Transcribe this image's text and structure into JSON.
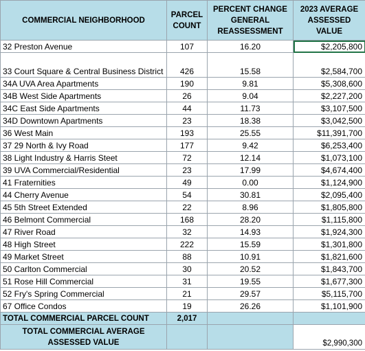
{
  "headers": {
    "neighborhood": "COMMERCIAL NEIGHBORHOOD",
    "parcel_count": "PARCEL COUNT",
    "percent_change": "PERCENT CHANGE GENERAL REASSESSMENT",
    "avg_value": "2023 AVERAGE ASSESSED VALUE"
  },
  "rows": [
    {
      "name": "32 Preston Avenue",
      "count": "107",
      "pct": "16.20",
      "value": "$2,205,800"
    },
    {
      "name": "33 Court Square & Central Business District",
      "count": "426",
      "pct": "15.58",
      "value": "$2,584,700"
    },
    {
      "name": "34A UVA Area Apartments",
      "count": "190",
      "pct": "9.81",
      "value": "$5,308,600"
    },
    {
      "name": "34B West Side Apartments",
      "count": "26",
      "pct": "9.04",
      "value": "$2,227,200"
    },
    {
      "name": "34C East Side Apartments",
      "count": "44",
      "pct": "11.73",
      "value": "$3,107,500"
    },
    {
      "name": "34D Downtown Apartments",
      "count": "23",
      "pct": "18.38",
      "value": "$3,042,500"
    },
    {
      "name": "36 West Main",
      "count": "193",
      "pct": "25.55",
      "value": "$11,391,700"
    },
    {
      "name": "37 29 North & Ivy Road",
      "count": "177",
      "pct": "9.42",
      "value": "$6,253,400"
    },
    {
      "name": "38 Light Industry & Harris Steet",
      "count": "72",
      "pct": "12.14",
      "value": "$1,073,100"
    },
    {
      "name": "39 UVA Commercial/Residential",
      "count": "23",
      "pct": "17.99",
      "value": "$4,674,400"
    },
    {
      "name": "41 Fraternities",
      "count": "49",
      "pct": "0.00",
      "value": "$1,124,900"
    },
    {
      "name": "44 Cherry Avenue",
      "count": "54",
      "pct": "30.81",
      "value": "$2,095,400"
    },
    {
      "name": "45 5th Street Extended",
      "count": "22",
      "pct": "8.96",
      "value": "$1,805,800"
    },
    {
      "name": "46 Belmont Commercial",
      "count": "168",
      "pct": "28.20",
      "value": "$1,115,800"
    },
    {
      "name": "47 River Road",
      "count": "32",
      "pct": "14.93",
      "value": "$1,924,300"
    },
    {
      "name": "48 High Street",
      "count": "222",
      "pct": "15.59",
      "value": "$1,301,800"
    },
    {
      "name": "49 Market Street",
      "count": "88",
      "pct": "10.91",
      "value": "$1,821,600"
    },
    {
      "name": "50 Carlton Commercial",
      "count": "30",
      "pct": "20.52",
      "value": "$1,843,700"
    },
    {
      "name": "51 Rose Hill Commercial",
      "count": "31",
      "pct": "19.55",
      "value": "$1,677,300"
    },
    {
      "name": "52 Fry's Spring Commercial",
      "count": "21",
      "pct": "29.57",
      "value": "$5,115,700"
    },
    {
      "name": "67 Office Condos",
      "count": "19",
      "pct": "26.26",
      "value": "$1,101,900"
    }
  ],
  "totals": {
    "parcel_count_label": "TOTAL COMMERCIAL PARCEL COUNT",
    "parcel_count_value": "2,017",
    "avg_value_label": "TOTAL COMMERCIAL AVERAGE ASSESSED VALUE",
    "avg_value_value": "$2,990,300"
  }
}
